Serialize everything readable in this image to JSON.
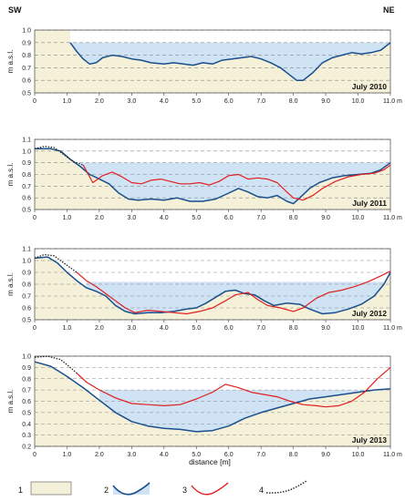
{
  "corner_labels": {
    "left": "SW",
    "right": "NE"
  },
  "x_axis_label": "distance  [m]",
  "y_axis_label": "m a.s.l.",
  "x_ticks": [
    "0",
    "1.0",
    "2.0",
    "3.0",
    "4.0",
    "5.0",
    "6.0",
    "7.0",
    "8.0",
    "9.0",
    "10.0",
    "11.0 m"
  ],
  "legend": [
    {
      "number": "1"
    },
    {
      "number": "2"
    },
    {
      "number": "3"
    },
    {
      "number": "4"
    }
  ],
  "colors": {
    "sand": "#f5f0d8",
    "water": "#cfe3f5",
    "bed_line": "#1a4f8c",
    "red_line": "#e02020",
    "dotted_line": "#222222",
    "dashed_grid": "#888888"
  },
  "chart_data": [
    {
      "type": "line",
      "label": "July 2010",
      "xlim": [
        0,
        11
      ],
      "ylim": [
        0.5,
        1.0
      ],
      "yticks": [
        "0.5",
        "0.6",
        "0.7",
        "0.8",
        "0.9",
        "1.0"
      ],
      "grid": "dashed horizontal",
      "water_level": 0.9,
      "series": [
        {
          "legend_number": "2",
          "points": [
            [
              1.1,
              0.9
            ],
            [
              1.3,
              0.83
            ],
            [
              1.5,
              0.77
            ],
            [
              1.7,
              0.73
            ],
            [
              1.9,
              0.74
            ],
            [
              2.1,
              0.78
            ],
            [
              2.4,
              0.8
            ],
            [
              2.7,
              0.79
            ],
            [
              3.0,
              0.77
            ],
            [
              3.3,
              0.76
            ],
            [
              3.6,
              0.74
            ],
            [
              4.0,
              0.73
            ],
            [
              4.3,
              0.74
            ],
            [
              4.6,
              0.73
            ],
            [
              4.9,
              0.72
            ],
            [
              5.2,
              0.74
            ],
            [
              5.5,
              0.73
            ],
            [
              5.8,
              0.76
            ],
            [
              6.1,
              0.77
            ],
            [
              6.4,
              0.78
            ],
            [
              6.7,
              0.79
            ],
            [
              7.0,
              0.77
            ],
            [
              7.3,
              0.74
            ],
            [
              7.6,
              0.7
            ],
            [
              7.9,
              0.64
            ],
            [
              8.1,
              0.6
            ],
            [
              8.3,
              0.6
            ],
            [
              8.6,
              0.66
            ],
            [
              8.9,
              0.74
            ],
            [
              9.2,
              0.78
            ],
            [
              9.5,
              0.8
            ],
            [
              9.8,
              0.82
            ],
            [
              10.1,
              0.81
            ],
            [
              10.4,
              0.82
            ],
            [
              10.7,
              0.84
            ],
            [
              11.0,
              0.9
            ]
          ]
        }
      ]
    },
    {
      "type": "line",
      "label": "July 2011",
      "xlim": [
        0,
        11
      ],
      "ylim": [
        0.5,
        1.1
      ],
      "yticks": [
        "0.5",
        "0.6",
        "0.7",
        "0.8",
        "0.9",
        "1.0",
        "1.1"
      ],
      "grid": "dashed horizontal",
      "water_level": 0.9,
      "series": [
        {
          "legend_number": "2",
          "points": [
            [
              0,
              1.02
            ],
            [
              0.5,
              1.02
            ],
            [
              0.8,
              1.0
            ],
            [
              1.1,
              0.93
            ],
            [
              1.4,
              0.87
            ],
            [
              1.7,
              0.8
            ],
            [
              2.0,
              0.76
            ],
            [
              2.3,
              0.72
            ],
            [
              2.6,
              0.64
            ],
            [
              2.9,
              0.59
            ],
            [
              3.2,
              0.58
            ],
            [
              3.6,
              0.59
            ],
            [
              4.0,
              0.58
            ],
            [
              4.4,
              0.6
            ],
            [
              4.8,
              0.57
            ],
            [
              5.2,
              0.57
            ],
            [
              5.6,
              0.59
            ],
            [
              6.0,
              0.64
            ],
            [
              6.3,
              0.68
            ],
            [
              6.6,
              0.65
            ],
            [
              6.9,
              0.61
            ],
            [
              7.2,
              0.6
            ],
            [
              7.5,
              0.62
            ],
            [
              7.8,
              0.57
            ],
            [
              8.0,
              0.55
            ],
            [
              8.2,
              0.6
            ],
            [
              8.5,
              0.68
            ],
            [
              8.8,
              0.73
            ],
            [
              9.2,
              0.77
            ],
            [
              9.6,
              0.79
            ],
            [
              10.0,
              0.8
            ],
            [
              10.4,
              0.81
            ],
            [
              10.7,
              0.84
            ],
            [
              11.0,
              0.9
            ]
          ]
        },
        {
          "legend_number": "3",
          "points": [
            [
              1.5,
              0.88
            ],
            [
              1.8,
              0.73
            ],
            [
              2.1,
              0.79
            ],
            [
              2.4,
              0.82
            ],
            [
              2.7,
              0.78
            ],
            [
              3.0,
              0.73
            ],
            [
              3.3,
              0.72
            ],
            [
              3.6,
              0.75
            ],
            [
              3.9,
              0.76
            ],
            [
              4.2,
              0.74
            ],
            [
              4.5,
              0.72
            ],
            [
              4.8,
              0.72
            ],
            [
              5.1,
              0.73
            ],
            [
              5.4,
              0.71
            ],
            [
              5.7,
              0.74
            ],
            [
              6.0,
              0.79
            ],
            [
              6.3,
              0.8
            ],
            [
              6.6,
              0.76
            ],
            [
              6.9,
              0.77
            ],
            [
              7.2,
              0.76
            ],
            [
              7.5,
              0.73
            ],
            [
              7.8,
              0.65
            ],
            [
              8.0,
              0.6
            ],
            [
              8.3,
              0.58
            ],
            [
              8.6,
              0.62
            ],
            [
              8.9,
              0.68
            ],
            [
              9.3,
              0.74
            ],
            [
              9.7,
              0.78
            ],
            [
              10.1,
              0.8
            ],
            [
              10.5,
              0.81
            ],
            [
              10.8,
              0.84
            ],
            [
              11.0,
              0.88
            ]
          ]
        },
        {
          "legend_number": "4",
          "points": [
            [
              0,
              1.02
            ],
            [
              0.3,
              1.04
            ],
            [
              0.6,
              1.03
            ],
            [
              0.9,
              0.97
            ],
            [
              1.2,
              0.91
            ],
            [
              1.5,
              0.88
            ]
          ]
        }
      ]
    },
    {
      "type": "line",
      "label": "July 2012",
      "xlim": [
        0,
        11
      ],
      "ylim": [
        0.5,
        1.1
      ],
      "yticks": [
        "0.5",
        "0.6",
        "0.7",
        "0.8",
        "0.9",
        "1.0",
        "1.1"
      ],
      "grid": "dashed horizontal",
      "water_level": 0.82,
      "series": [
        {
          "legend_number": "2",
          "points": [
            [
              0,
              1.02
            ],
            [
              0.4,
              1.03
            ],
            [
              0.7,
              0.98
            ],
            [
              1.0,
              0.9
            ],
            [
              1.3,
              0.83
            ],
            [
              1.6,
              0.77
            ],
            [
              1.9,
              0.74
            ],
            [
              2.2,
              0.7
            ],
            [
              2.5,
              0.62
            ],
            [
              2.8,
              0.57
            ],
            [
              3.1,
              0.55
            ],
            [
              3.5,
              0.56
            ],
            [
              3.9,
              0.56
            ],
            [
              4.3,
              0.57
            ],
            [
              4.7,
              0.59
            ],
            [
              5.0,
              0.6
            ],
            [
              5.3,
              0.64
            ],
            [
              5.6,
              0.69
            ],
            [
              5.9,
              0.74
            ],
            [
              6.2,
              0.75
            ],
            [
              6.5,
              0.72
            ],
            [
              6.8,
              0.71
            ],
            [
              7.1,
              0.66
            ],
            [
              7.4,
              0.62
            ],
            [
              7.8,
              0.64
            ],
            [
              8.2,
              0.63
            ],
            [
              8.5,
              0.59
            ],
            [
              8.9,
              0.55
            ],
            [
              9.3,
              0.56
            ],
            [
              9.7,
              0.59
            ],
            [
              10.1,
              0.63
            ],
            [
              10.5,
              0.7
            ],
            [
              10.8,
              0.8
            ],
            [
              11.0,
              0.9
            ]
          ]
        },
        {
          "legend_number": "3",
          "points": [
            [
              1.3,
              0.9
            ],
            [
              1.6,
              0.83
            ],
            [
              1.9,
              0.78
            ],
            [
              2.2,
              0.72
            ],
            [
              2.5,
              0.66
            ],
            [
              2.8,
              0.6
            ],
            [
              3.1,
              0.56
            ],
            [
              3.5,
              0.58
            ],
            [
              3.9,
              0.57
            ],
            [
              4.3,
              0.56
            ],
            [
              4.7,
              0.55
            ],
            [
              5.1,
              0.57
            ],
            [
              5.5,
              0.6
            ],
            [
              5.9,
              0.66
            ],
            [
              6.2,
              0.71
            ],
            [
              6.6,
              0.73
            ],
            [
              6.9,
              0.67
            ],
            [
              7.2,
              0.62
            ],
            [
              7.6,
              0.6
            ],
            [
              8.0,
              0.57
            ],
            [
              8.3,
              0.6
            ],
            [
              8.7,
              0.68
            ],
            [
              9.1,
              0.73
            ],
            [
              9.5,
              0.75
            ],
            [
              9.9,
              0.78
            ],
            [
              10.3,
              0.82
            ],
            [
              10.7,
              0.87
            ],
            [
              11.0,
              0.91
            ]
          ]
        },
        {
          "legend_number": "4",
          "points": [
            [
              0,
              1.02
            ],
            [
              0.3,
              1.05
            ],
            [
              0.6,
              1.04
            ],
            [
              0.9,
              0.98
            ],
            [
              1.2,
              0.92
            ],
            [
              1.3,
              0.9
            ]
          ]
        }
      ]
    },
    {
      "type": "line",
      "label": "July 2013",
      "xlim": [
        0,
        11
      ],
      "ylim": [
        0.2,
        1.0
      ],
      "yticks": [
        "0.2",
        "0.3",
        "0.4",
        "0.5",
        "0.6",
        "0.7",
        "0.8",
        "0.9",
        "1.0"
      ],
      "grid": "dashed horizontal",
      "water_level": 0.7,
      "series": [
        {
          "legend_number": "2",
          "points": [
            [
              0,
              0.95
            ],
            [
              0.5,
              0.91
            ],
            [
              1.0,
              0.82
            ],
            [
              1.5,
              0.72
            ],
            [
              2.0,
              0.61
            ],
            [
              2.5,
              0.5
            ],
            [
              3.0,
              0.42
            ],
            [
              3.5,
              0.38
            ],
            [
              4.0,
              0.36
            ],
            [
              4.5,
              0.35
            ],
            [
              5.0,
              0.33
            ],
            [
              5.5,
              0.34
            ],
            [
              6.0,
              0.38
            ],
            [
              6.5,
              0.45
            ],
            [
              7.0,
              0.5
            ],
            [
              7.5,
              0.54
            ],
            [
              8.0,
              0.58
            ],
            [
              8.5,
              0.62
            ],
            [
              9.0,
              0.64
            ],
            [
              9.5,
              0.66
            ],
            [
              10.0,
              0.68
            ],
            [
              10.5,
              0.7
            ],
            [
              11.0,
              0.71
            ]
          ]
        },
        {
          "legend_number": "3",
          "points": [
            [
              1.3,
              0.85
            ],
            [
              1.6,
              0.77
            ],
            [
              2.0,
              0.7
            ],
            [
              2.5,
              0.63
            ],
            [
              3.0,
              0.58
            ],
            [
              3.5,
              0.57
            ],
            [
              4.0,
              0.56
            ],
            [
              4.5,
              0.57
            ],
            [
              5.0,
              0.62
            ],
            [
              5.5,
              0.68
            ],
            [
              5.9,
              0.75
            ],
            [
              6.3,
              0.72
            ],
            [
              6.7,
              0.68
            ],
            [
              7.1,
              0.66
            ],
            [
              7.5,
              0.64
            ],
            [
              7.9,
              0.6
            ],
            [
              8.3,
              0.57
            ],
            [
              8.7,
              0.56
            ],
            [
              9.0,
              0.55
            ],
            [
              9.4,
              0.56
            ],
            [
              9.8,
              0.6
            ],
            [
              10.2,
              0.68
            ],
            [
              10.6,
              0.8
            ],
            [
              11.0,
              0.9
            ]
          ]
        },
        {
          "legend_number": "4",
          "points": [
            [
              0,
              0.99
            ],
            [
              0.4,
              1.0
            ],
            [
              0.8,
              0.97
            ],
            [
              1.1,
              0.9
            ],
            [
              1.3,
              0.85
            ]
          ]
        }
      ]
    }
  ]
}
